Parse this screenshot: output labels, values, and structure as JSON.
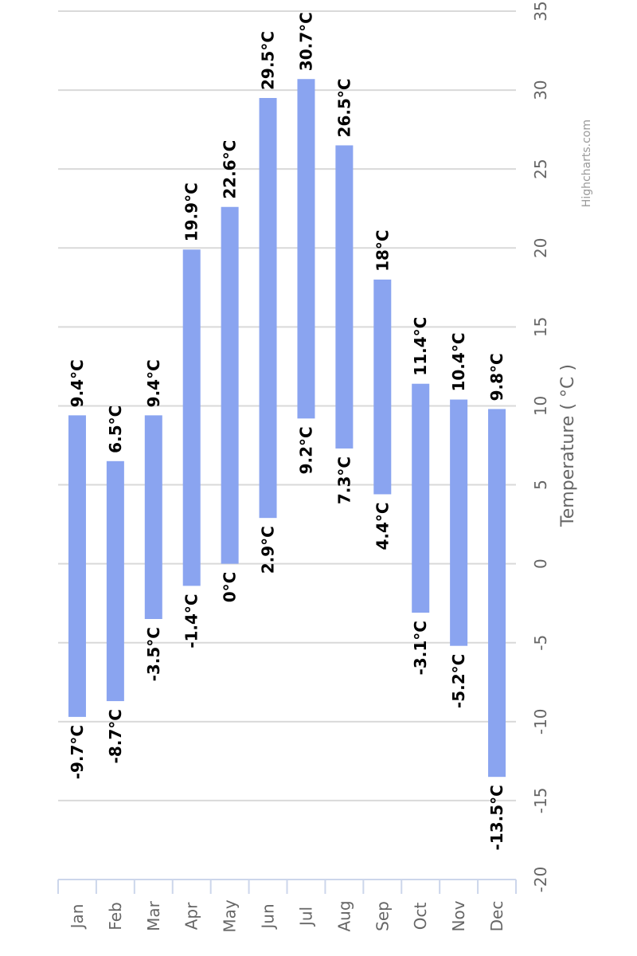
{
  "chart_data": {
    "type": "columnrange",
    "orientation": "rotated",
    "categories": [
      "Jan",
      "Feb",
      "Mar",
      "Apr",
      "May",
      "Jun",
      "Jul",
      "Aug",
      "Sep",
      "Oct",
      "Nov",
      "Dec"
    ],
    "series": [
      {
        "low": [
          -9.7,
          -8.7,
          -3.5,
          -1.4,
          0,
          2.9,
          9.2,
          7.3,
          4.4,
          -3.1,
          -5.2,
          -13.5
        ],
        "high": [
          9.4,
          6.5,
          9.4,
          19.9,
          22.6,
          29.5,
          30.7,
          26.5,
          18,
          11.4,
          10.4,
          9.8
        ],
        "color": "#8aa4f0"
      }
    ],
    "data_labels": {
      "low": [
        "-9.7°C",
        "-8.7°C",
        "-3.5°C",
        "-1.4°C",
        "0°C",
        "2.9°C",
        "9.2°C",
        "7.3°C",
        "4.4°C",
        "-3.1°C",
        "-5.2°C",
        "-13.5°C"
      ],
      "high": [
        "9.4°C",
        "6.5°C",
        "9.4°C",
        "19.9°C",
        "22.6°C",
        "29.5°C",
        "30.7°C",
        "26.5°C",
        "18°C",
        "11.4°C",
        "10.4°C",
        "9.8°C"
      ]
    },
    "ylabel": "Temperature ( °C )",
    "ylim": [
      -20,
      35
    ],
    "ytick_labels": [
      "-20",
      "-15",
      "-10",
      "-5",
      "0",
      "5",
      "10",
      "15",
      "20",
      "25",
      "30",
      "35"
    ],
    "grid": true,
    "credits": "Highcharts.com"
  }
}
